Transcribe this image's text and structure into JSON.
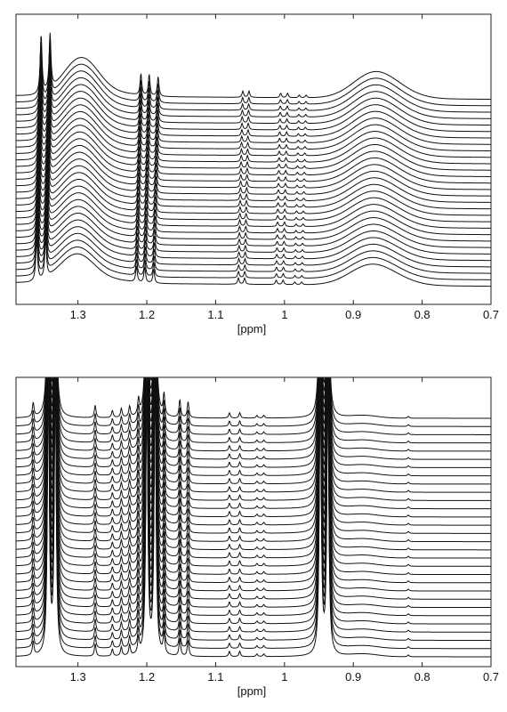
{
  "chart_data": [
    {
      "type": "line",
      "title": "",
      "xlabel": "[ppm]",
      "ylabel": "",
      "xlim": [
        1.39,
        0.7
      ],
      "x_reversed": true,
      "xticks": [
        "1.3",
        "1.2",
        "1.1",
        "1",
        "0.9",
        "0.8",
        "0.7"
      ],
      "xtick_values": [
        1.3,
        1.2,
        1.1,
        1.0,
        0.9,
        0.8,
        0.7
      ],
      "grid": false,
      "legend": "none",
      "spectra_count": 30,
      "description": "",
      "broad_peaks_ppm": [
        1.296,
        0.878
      ],
      "sharp_peaks_ppm": [
        1.36,
        1.347,
        1.215,
        1.203,
        1.19,
        1.067,
        1.058,
        1.012,
        1.002
      ]
    },
    {
      "type": "line",
      "title": "",
      "xlabel": "[ppm]",
      "ylabel": "",
      "xlim": [
        1.39,
        0.7
      ],
      "x_reversed": true,
      "xticks": [
        "1.3",
        "1.2",
        "1.1",
        "1",
        "0.9",
        "0.8",
        "0.7"
      ],
      "xtick_values": [
        1.3,
        1.2,
        1.1,
        1.0,
        0.9,
        0.8,
        0.7
      ],
      "grid": false,
      "legend": "none",
      "spectra_count": 30,
      "sharp_peaks_ppm": [
        1.365,
        1.343,
        1.333,
        1.275,
        1.25,
        1.237,
        1.225,
        1.212,
        1.2,
        1.188,
        1.175,
        1.152,
        1.14,
        1.08,
        1.065,
        0.948,
        0.937
      ],
      "broad_peaks_ppm": [
        0.885
      ]
    }
  ]
}
